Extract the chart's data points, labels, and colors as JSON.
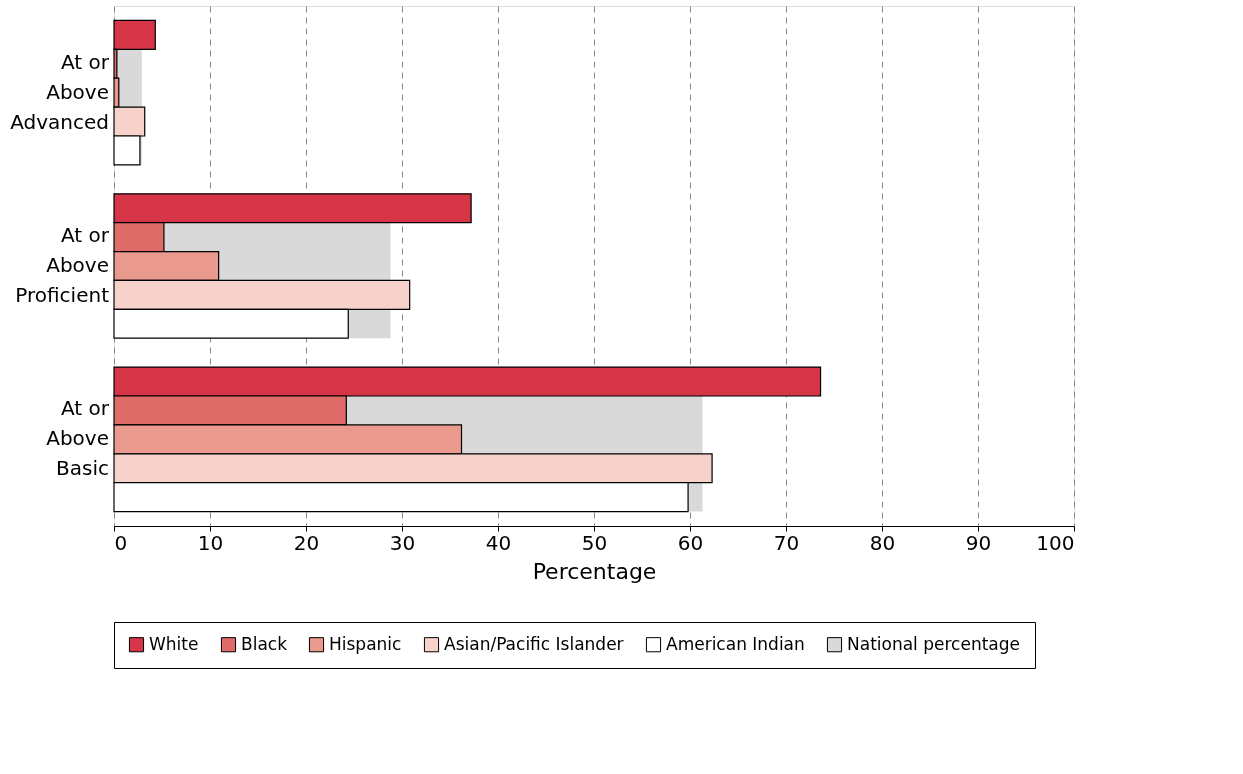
{
  "chart_data": {
    "type": "bar",
    "orientation": "horizontal",
    "xlabel": "Percentage",
    "categories": [
      "At or Above Advanced",
      "At or Above Proficient",
      "At or Above Basic"
    ],
    "series": [
      {
        "name": "White",
        "color": "#d63447",
        "values": [
          4.3,
          37.2,
          73.6
        ]
      },
      {
        "name": "Black",
        "color": "#e06c69",
        "values": [
          0.3,
          5.2,
          24.2
        ]
      },
      {
        "name": "Hispanic",
        "color": "#ea998d",
        "values": [
          0.5,
          10.9,
          36.2
        ]
      },
      {
        "name": "Asian/Pacific Islander",
        "color": "#f6d2cb",
        "values": [
          3.2,
          30.8,
          62.3
        ]
      },
      {
        "name": "American Indian",
        "color": "#ffffff",
        "values": [
          2.7,
          24.4,
          59.8
        ]
      },
      {
        "name": "National percentage",
        "color": "#d9d9d9",
        "values": [
          2.9,
          28.8,
          61.3
        ]
      }
    ],
    "xlim": [
      0,
      100
    ],
    "xticks": [
      0,
      10,
      20,
      30,
      40,
      50,
      60,
      70,
      80,
      90,
      100
    ],
    "grid": "x",
    "legend": "bottom"
  }
}
